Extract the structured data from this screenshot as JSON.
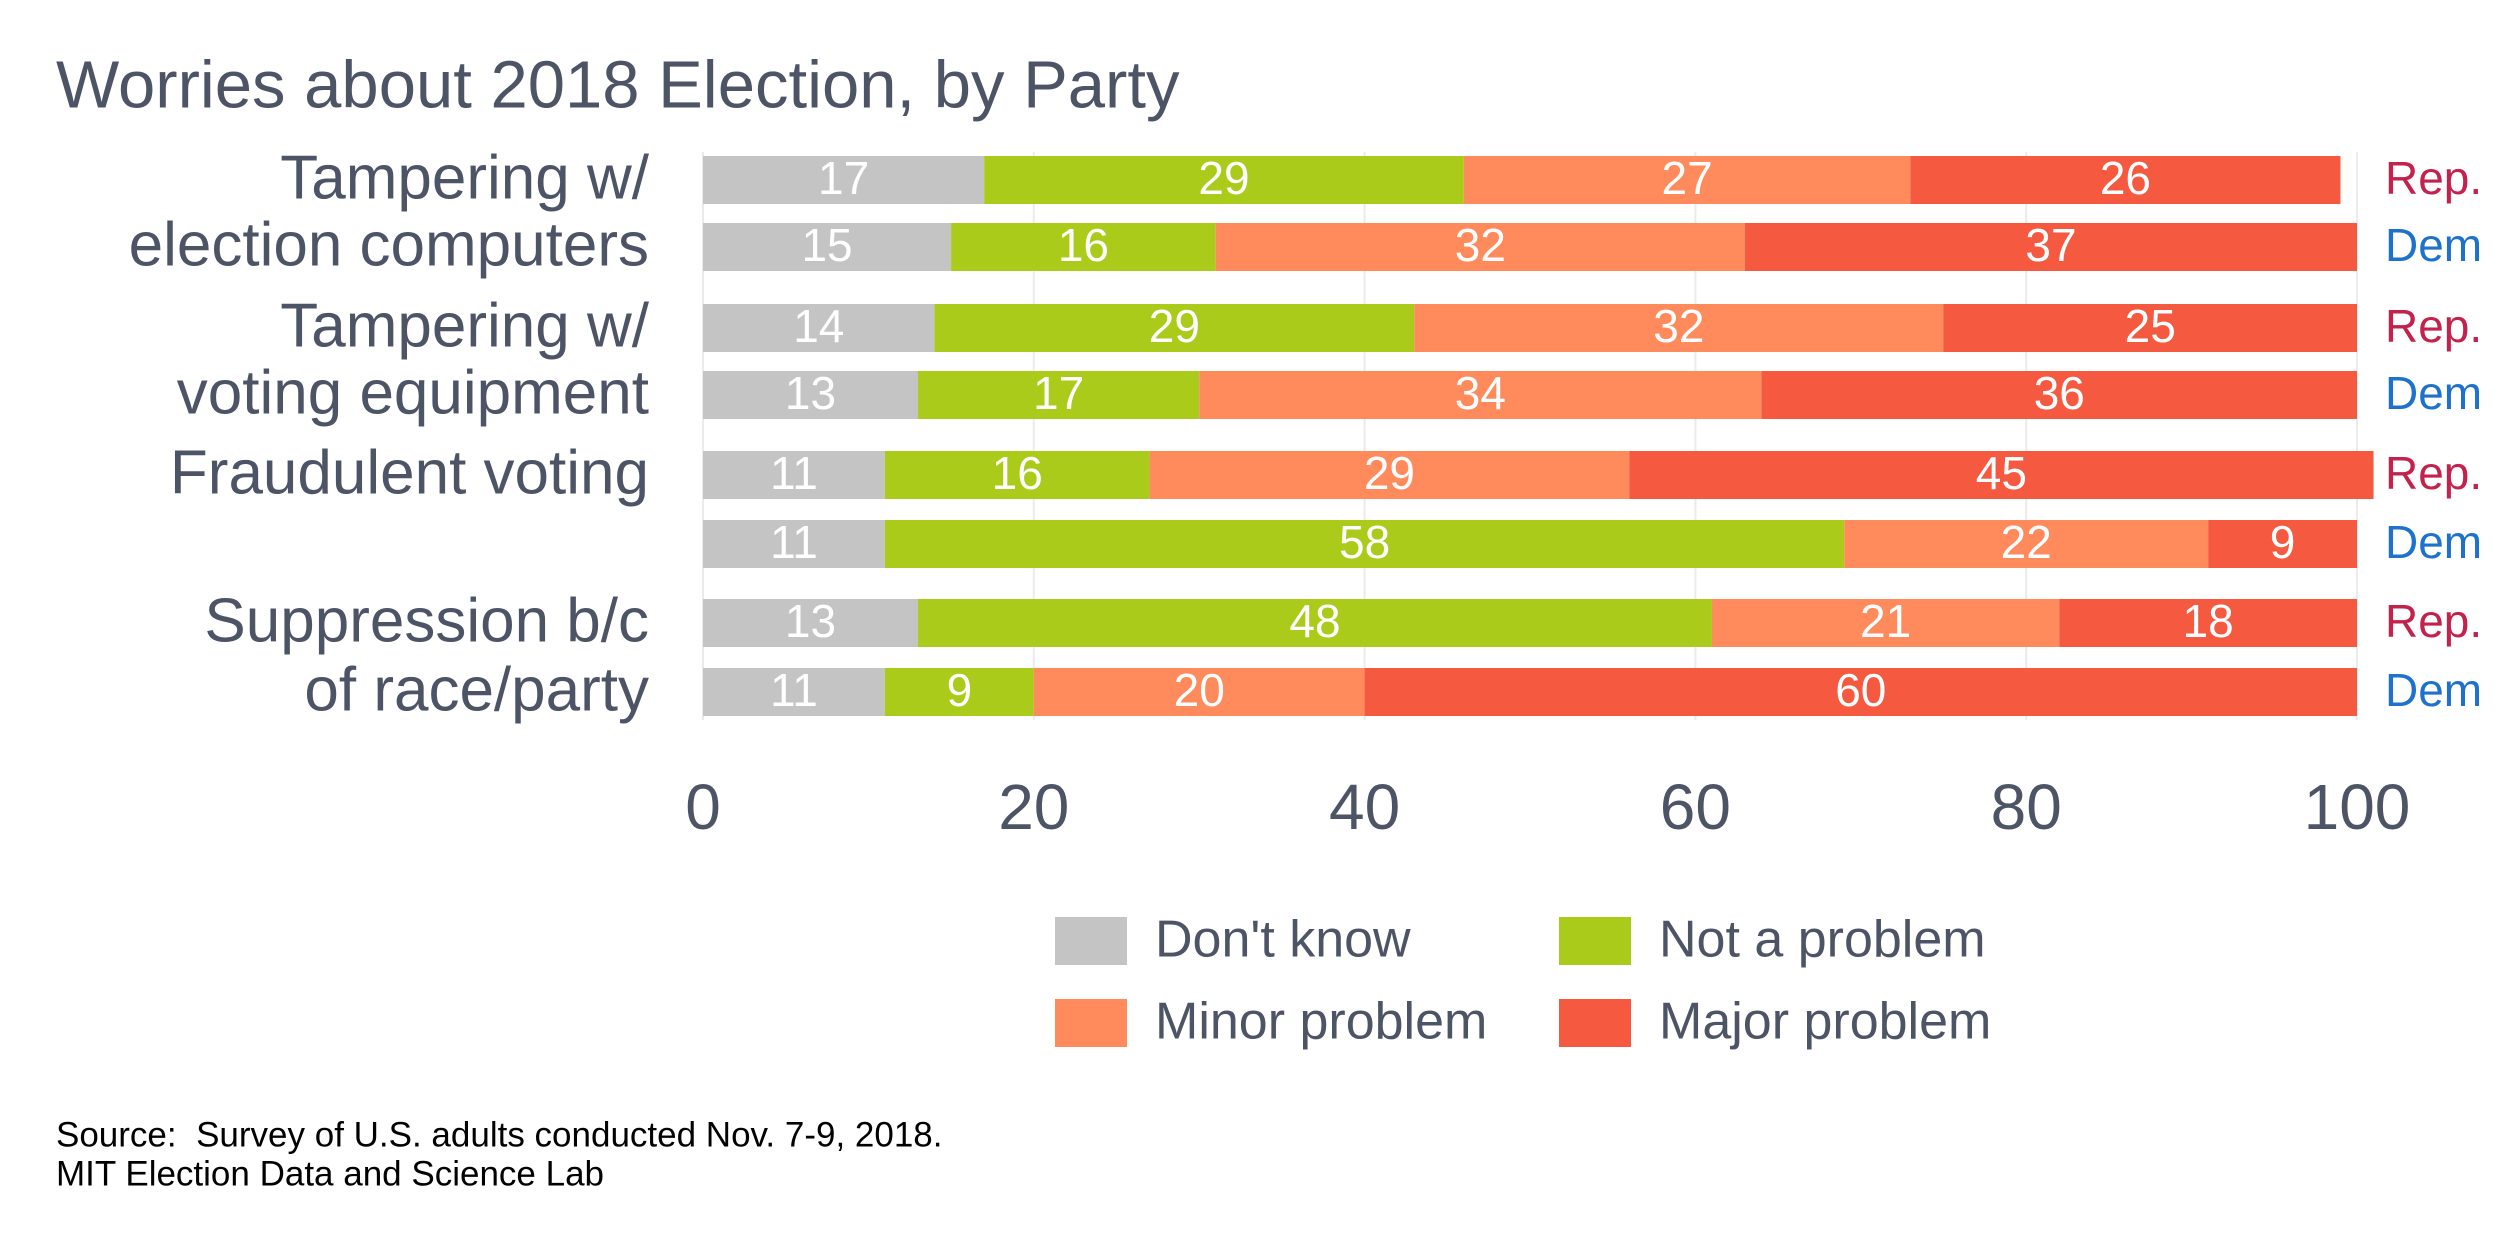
{
  "chart_data": {
    "type": "stacked-bar-horizontal",
    "title": "Worries about 2018 Election, by Party",
    "group_labels": [
      [
        "Tampering w/",
        "election computers"
      ],
      [
        "Tampering w/",
        "voting equipment"
      ],
      [
        "Fraudulent voting"
      ],
      [
        "Suppression b/c",
        "of race/party"
      ]
    ],
    "categories": [
      "Rep.",
      "Dem",
      "Rep.",
      "Dem",
      "Rep.",
      "Dem",
      "Rep.",
      "Dem"
    ],
    "category_colors": {
      "Rep.": "#c2224c",
      "Dem": "#1f72cc"
    },
    "series": [
      {
        "name": "Don't know",
        "color": "#c4c4c4",
        "values": [
          17,
          15,
          14,
          13,
          11,
          11,
          13,
          11
        ]
      },
      {
        "name": "Not a problem",
        "color": "#abcb1a",
        "values": [
          29,
          16,
          29,
          17,
          16,
          58,
          48,
          9
        ]
      },
      {
        "name": "Minor problem",
        "color": "#ff8a5b",
        "values": [
          27,
          32,
          32,
          34,
          29,
          22,
          21,
          20
        ]
      },
      {
        "name": "Major problem",
        "color": "#f55a41",
        "values": [
          26,
          37,
          25,
          36,
          45,
          9,
          18,
          60
        ]
      }
    ],
    "xlim": [
      0,
      100
    ],
    "xticks": [
      0,
      20,
      40,
      60,
      80,
      100
    ],
    "grid": true,
    "source": [
      "Source:  Survey of U.S. adults conducted Nov. 7-9, 2018.",
      "MIT Election Data and Science Lab"
    ]
  }
}
